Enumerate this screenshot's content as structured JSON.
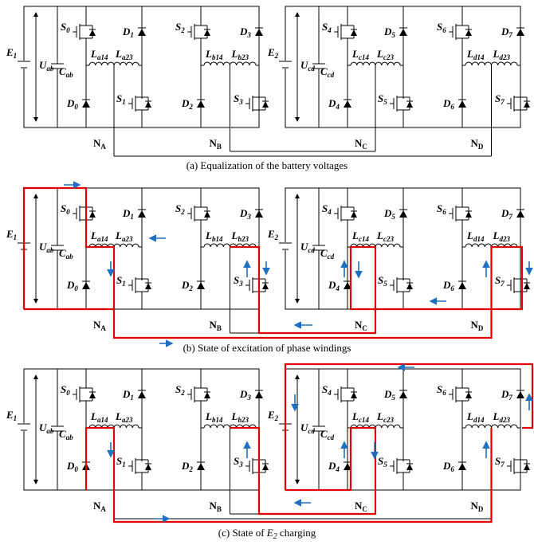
{
  "captions": [
    "(a) Equalization of the battery voltages",
    "(b) State of excitation of phase windings",
    {
      "prefix": "(c) State of ",
      "symbol": "E",
      "subscript": "2",
      "suffix": " charging"
    }
  ],
  "switches": [
    {
      "symbol": "S",
      "sub": "0"
    },
    {
      "symbol": "S",
      "sub": "1"
    },
    {
      "symbol": "S",
      "sub": "2"
    },
    {
      "symbol": "S",
      "sub": "3"
    },
    {
      "symbol": "S",
      "sub": "4"
    },
    {
      "symbol": "S",
      "sub": "5"
    },
    {
      "symbol": "S",
      "sub": "6"
    },
    {
      "symbol": "S",
      "sub": "7"
    }
  ],
  "diodes": [
    {
      "symbol": "D",
      "sub": "0"
    },
    {
      "symbol": "D",
      "sub": "1"
    },
    {
      "symbol": "D",
      "sub": "2"
    },
    {
      "symbol": "D",
      "sub": "3"
    },
    {
      "symbol": "D",
      "sub": "4"
    },
    {
      "symbol": "D",
      "sub": "5"
    },
    {
      "symbol": "D",
      "sub": "6"
    },
    {
      "symbol": "D",
      "sub": "7"
    }
  ],
  "inductors": [
    {
      "symbol": "L",
      "sub": "a14"
    },
    {
      "symbol": "L",
      "sub": "a23"
    },
    {
      "symbol": "L",
      "sub": "b14"
    },
    {
      "symbol": "L",
      "sub": "b23"
    },
    {
      "symbol": "L",
      "sub": "c14"
    },
    {
      "symbol": "L",
      "sub": "c23"
    },
    {
      "symbol": "L",
      "sub": "d14"
    },
    {
      "symbol": "L",
      "sub": "d23"
    }
  ],
  "sources": [
    {
      "symbol": "E",
      "sub": "1"
    },
    {
      "symbol": "E",
      "sub": "2"
    }
  ],
  "voltages": [
    {
      "symbol": "U",
      "sub": "ab"
    },
    {
      "symbol": "U",
      "sub": "cd"
    }
  ],
  "capacitors": [
    {
      "symbol": "C",
      "sub": "ab"
    },
    {
      "symbol": "C",
      "sub": "cd"
    }
  ],
  "nodes": [
    {
      "symbol": "N",
      "sub": "A"
    },
    {
      "symbol": "N",
      "sub": "B"
    },
    {
      "symbol": "N",
      "sub": "C"
    },
    {
      "symbol": "N",
      "sub": "D"
    }
  ]
}
